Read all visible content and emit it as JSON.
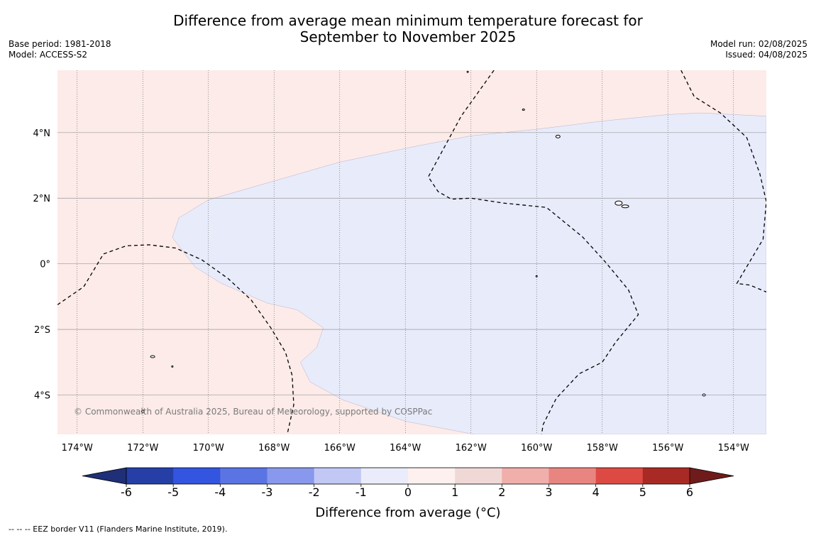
{
  "title": {
    "line1": "Difference from average mean minimum temperature forecast for",
    "line2": "September to November 2025"
  },
  "meta": {
    "base_period": "Base period: 1981-2018",
    "model": "Model: ACCESS-S2",
    "model_run": "Model run: 02/08/2025",
    "issued": "Issued: 04/08/2025"
  },
  "map": {
    "lon_range": [
      -174.6,
      -153.0
    ],
    "lat_range": [
      -5.2,
      5.9
    ],
    "lon_ticks": [
      {
        "value": -174,
        "label": "174°W"
      },
      {
        "value": -172,
        "label": "172°W"
      },
      {
        "value": -170,
        "label": "170°W"
      },
      {
        "value": -168,
        "label": "168°W"
      },
      {
        "value": -166,
        "label": "166°W"
      },
      {
        "value": -164,
        "label": "164°W"
      },
      {
        "value": -162,
        "label": "162°W"
      },
      {
        "value": -160,
        "label": "160°W"
      },
      {
        "value": -158,
        "label": "158°W"
      },
      {
        "value": -156,
        "label": "156°W"
      },
      {
        "value": -154,
        "label": "154°W"
      }
    ],
    "lat_ticks": [
      {
        "value": 4,
        "label": "4°N"
      },
      {
        "value": 2,
        "label": "2°N"
      },
      {
        "value": 0,
        "label": "0°"
      },
      {
        "value": -2,
        "label": "2°S"
      },
      {
        "value": -4,
        "label": "4°S"
      }
    ],
    "background_category": "0 to 1 °C (warmer than average)",
    "background_color": "#fcebe8",
    "cool_region_category": "-1 to 0 °C (cooler than average)",
    "cool_region_color": "#e8ebfa",
    "cool_region_outline": [
      [
        -170.9,
        1.4
      ],
      [
        -170.0,
        1.95
      ],
      [
        -166.0,
        3.1
      ],
      [
        -163.6,
        3.6
      ],
      [
        -162.0,
        3.9
      ],
      [
        -160.0,
        4.1
      ],
      [
        -158.0,
        4.35
      ],
      [
        -156.0,
        4.55
      ],
      [
        -155.0,
        4.6
      ],
      [
        -153.0,
        4.5
      ],
      [
        -153.0,
        -5.2
      ],
      [
        -161.9,
        -5.2
      ],
      [
        -164.0,
        -4.8
      ],
      [
        -165.9,
        -4.15
      ],
      [
        -166.9,
        -3.6
      ],
      [
        -167.2,
        -3.0
      ],
      [
        -166.7,
        -2.55
      ],
      [
        -166.5,
        -1.95
      ],
      [
        -167.3,
        -1.4
      ],
      [
        -168.2,
        -1.2
      ],
      [
        -169.6,
        -0.6
      ],
      [
        -170.4,
        -0.1
      ],
      [
        -171.1,
        0.8
      ]
    ],
    "copyright": "© Commonwealth of Australia 2025, Bureau of Meteorology, supported by COSPPac",
    "eez_borders": [
      [
        [
          -174.6,
          -1.25
        ],
        [
          -173.8,
          -0.7
        ],
        [
          -173.2,
          0.3
        ],
        [
          -172.5,
          0.55
        ],
        [
          -171.8,
          0.58
        ],
        [
          -171.0,
          0.48
        ],
        [
          -170.2,
          0.12
        ],
        [
          -169.4,
          -0.45
        ],
        [
          -168.7,
          -1.1
        ],
        [
          -168.1,
          -1.95
        ],
        [
          -167.65,
          -2.7
        ],
        [
          -167.45,
          -3.4
        ],
        [
          -167.4,
          -4.3
        ],
        [
          -167.6,
          -5.2
        ]
      ],
      [
        [
          -161.3,
          5.9
        ],
        [
          -162.3,
          4.5
        ],
        [
          -163.3,
          2.65
        ],
        [
          -163.0,
          2.2
        ],
        [
          -162.6,
          1.97
        ],
        [
          -162.0,
          2.0
        ],
        [
          -161.0,
          1.85
        ],
        [
          -159.7,
          1.72
        ],
        [
          -158.6,
          0.82
        ],
        [
          -157.9,
          0.05
        ],
        [
          -157.2,
          -0.8
        ],
        [
          -156.9,
          -1.55
        ],
        [
          -157.6,
          -2.4
        ],
        [
          -158.0,
          -3.0
        ],
        [
          -158.7,
          -3.35
        ],
        [
          -159.4,
          -4.1
        ],
        [
          -159.8,
          -4.9
        ],
        [
          -159.85,
          -5.2
        ]
      ],
      [
        [
          -155.6,
          5.9
        ],
        [
          -155.2,
          5.1
        ],
        [
          -154.4,
          4.6
        ],
        [
          -153.6,
          3.85
        ],
        [
          -153.2,
          2.75
        ],
        [
          -153.0,
          1.9
        ],
        [
          -153.1,
          0.75
        ],
        [
          -153.9,
          -0.6
        ],
        [
          -153.5,
          -0.65
        ],
        [
          -152.9,
          -0.9
        ],
        [
          -152.5,
          -1.2
        ]
      ]
    ],
    "islands": [
      {
        "lon": -159.35,
        "lat": 3.88,
        "rx": 3,
        "ry": 2
      },
      {
        "lon": -157.5,
        "lat": 1.85,
        "rx": 5,
        "ry": 3
      },
      {
        "lon": -157.3,
        "lat": 1.75,
        "rx": 5,
        "ry": 2
      },
      {
        "lon": -171.7,
        "lat": -2.83,
        "rx": 3,
        "ry": 1.5
      },
      {
        "lon": -171.1,
        "lat": -3.13,
        "rx": 1,
        "ry": 1
      },
      {
        "lon": -172.0,
        "lat": -4.5,
        "rx": 2,
        "ry": 1.5
      },
      {
        "lon": -160.4,
        "lat": 4.7,
        "rx": 1.5,
        "ry": 1
      },
      {
        "lon": -162.1,
        "lat": 5.85,
        "rx": 1,
        "ry": 1
      },
      {
        "lon": -154.9,
        "lat": -4.0,
        "rx": 2,
        "ry": 1.5
      },
      {
        "lon": -160.0,
        "lat": -0.38,
        "rx": 1,
        "ry": 1
      }
    ]
  },
  "colorbar": {
    "label": "Difference from average (°C)",
    "ticks": [
      "-6",
      "-5",
      "-4",
      "-3",
      "-2",
      "-1",
      "0",
      "1",
      "2",
      "3",
      "4",
      "5",
      "6"
    ],
    "colors": [
      "#263fa7",
      "#3355df",
      "#5b74e3",
      "#8898ec",
      "#c2c8f5",
      "#eaecfb",
      "#fdf0ee",
      "#f0d8d6",
      "#f0afab",
      "#e98580",
      "#dd4a43",
      "#a92a25"
    ],
    "under_color": "#1f2f78",
    "over_color": "#6f1b1b"
  },
  "footnote": "--  --  -- EEZ border V11 (Flanders Marine Institute, 2019)."
}
